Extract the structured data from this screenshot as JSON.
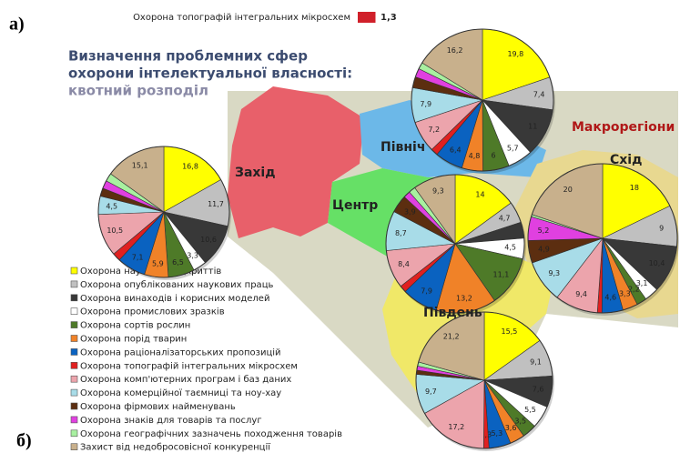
{
  "header": {
    "mark_a": "а)",
    "mark_b": "б)",
    "title_line1": "Визначення проблемних сфер",
    "title_line2": "охорони інтелектуальної власності:",
    "subtitle": "квотний розподіл",
    "map_label": "Макрорегіони"
  },
  "top_strip": {
    "label": "Охорона топографій інтегральних мікросхем",
    "value": 1.3,
    "value_label": "1,3",
    "color": "#d0202a"
  },
  "legend": {
    "items": [
      "Охорона наукових відкриттів",
      "Охорона опублікованих наукових праць",
      "Охорона винаходів і корисних моделей",
      "Охорона промислових зразків",
      "Охорона сортів рослин",
      "Охорона порід тварин",
      "Охорона раціоналізаторських пропозицій",
      "Охорона топографій інтегральних мікросхем",
      "Охорона комп'ютерних програм і баз даних",
      "Охорона комерційної таємниці та ноу-хау",
      "Охорона фірмових найменувань",
      "Охорона знаків для товарів та послуг",
      "Охорона географічних зазначень походження товарів",
      "Захист від недобросовісної конкуренції"
    ],
    "colors": [
      "#ffff00",
      "#c0c0c0",
      "#383838",
      "#ffffff",
      "#4e7a28",
      "#f08228",
      "#0a62c0",
      "#e02020",
      "#eca4ac",
      "#a8dce8",
      "#5c2e10",
      "#e040e0",
      "#a8f0a0",
      "#c8b08c"
    ]
  },
  "chart_data": [
    {
      "type": "pie",
      "title": "Захід",
      "values": [
        16.8,
        11.7,
        10.6,
        3.3,
        6.5,
        5.9,
        7.1,
        2,
        10.5,
        4.5,
        2,
        2,
        2,
        15.1
      ],
      "value_labels": [
        "16,8",
        "11,7",
        "10,6",
        "3,3",
        "6,5",
        "5,9",
        "7,1",
        null,
        "10,5",
        "4,5",
        null,
        null,
        null,
        "15,1"
      ]
    },
    {
      "type": "pie",
      "title": "Північ",
      "values": [
        19.8,
        7.4,
        11,
        5.7,
        6,
        4.8,
        6.4,
        1.6,
        7.2,
        7.9,
        2.5,
        2,
        1.5,
        16.2
      ],
      "value_labels": [
        "19,8",
        "7,4",
        "11",
        "5,7",
        "6",
        "4,8",
        "6,4",
        null,
        "7,2",
        "7,9",
        null,
        null,
        null,
        "16,2"
      ]
    },
    {
      "type": "pie",
      "title": "Центр",
      "values": [
        14,
        4.7,
        3.5,
        4.5,
        11.1,
        13.2,
        7.9,
        1.5,
        8.4,
        8.7,
        3.9,
        1.5,
        1.5,
        9.3
      ],
      "value_labels": [
        "14",
        "4,7",
        null,
        "4,5",
        "11,1",
        "13,2",
        "7,9",
        null,
        "8,4",
        "8,7",
        "3,9",
        null,
        null,
        "9,3"
      ]
    },
    {
      "type": "pie",
      "title": "Схід",
      "values": [
        18,
        9,
        10.4,
        3.1,
        2.2,
        3.3,
        4.6,
        1,
        9.4,
        9.3,
        4.9,
        5.2,
        0.5,
        20
      ],
      "value_labels": [
        "18",
        "9",
        "10,4",
        "3,1",
        "2,2",
        "3,3",
        "4,6",
        null,
        "9,4",
        "9,3",
        "4,9",
        "5,2",
        null,
        "20"
      ]
    },
    {
      "type": "pie",
      "title": "Південь",
      "values": [
        15.5,
        9.1,
        7.6,
        5.5,
        3.5,
        3.6,
        5.3,
        1.3,
        17.2,
        9.7,
        1,
        1,
        1,
        21.2
      ],
      "value_labels": [
        "15,5",
        "9,1",
        "7,6",
        "5,5",
        "3,5",
        "3,6",
        "5,3",
        "1,3",
        "17,2",
        "9,7",
        null,
        null,
        null,
        "21,2"
      ]
    }
  ]
}
